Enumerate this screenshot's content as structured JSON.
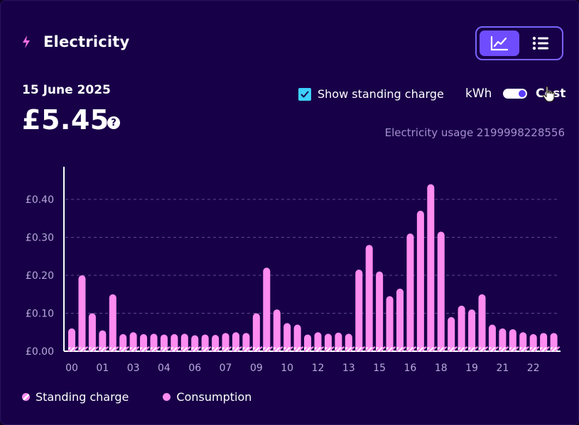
{
  "card": {
    "title": "Electricity",
    "icons": {
      "title_icon": "lightning-bolt-icon",
      "chart_view": "line-chart-icon",
      "list_view": "list-icon",
      "help": "question-mark-icon",
      "cursor": "hand-pointer-icon"
    }
  },
  "summary": {
    "date": "15 June 2025",
    "amount": "£5.45",
    "help_glyph": "?"
  },
  "controls": {
    "standing_charge_label": "Show standing charge",
    "standing_charge_checked": true,
    "unit_kwh": "kWh",
    "unit_cost": "Cost",
    "unit_selected": "Cost"
  },
  "meter": {
    "label": "Electricity usage 2199998228556"
  },
  "legend": {
    "standing_charge": "Standing charge",
    "consumption": "Consumption"
  },
  "colors": {
    "background": "#180048",
    "bar": "#ff8cf0",
    "accent": "#6f4dff",
    "checkbox": "#3ed0ff",
    "muted_text": "#a58fd0"
  },
  "chart_data": {
    "type": "bar",
    "x_ticks": [
      "00",
      "01",
      "03",
      "04",
      "06",
      "07",
      "09",
      "10",
      "12",
      "13",
      "15",
      "16",
      "18",
      "19",
      "21",
      "22"
    ],
    "y_ticks": [
      "£0.00",
      "£0.10",
      "£0.20",
      "£0.30",
      "£0.40"
    ],
    "ylim": [
      0,
      0.48
    ],
    "grid": true,
    "categories": [
      "00:00",
      "00:30",
      "01:00",
      "01:30",
      "02:00",
      "02:30",
      "03:00",
      "03:30",
      "04:00",
      "04:30",
      "05:00",
      "05:30",
      "06:00",
      "06:30",
      "07:00",
      "07:30",
      "08:00",
      "08:30",
      "09:00",
      "09:30",
      "10:00",
      "10:30",
      "11:00",
      "11:30",
      "12:00",
      "12:30",
      "13:00",
      "13:30",
      "14:00",
      "14:30",
      "15:00",
      "15:30",
      "16:00",
      "16:30",
      "17:00",
      "17:30",
      "18:00",
      "18:30",
      "19:00",
      "19:30",
      "20:00",
      "20:30",
      "21:00",
      "21:30",
      "22:00",
      "22:30",
      "23:00",
      "23:30"
    ],
    "series": [
      {
        "name": "Standing charge",
        "values": [
          0.01,
          0.01,
          0.01,
          0.01,
          0.01,
          0.01,
          0.01,
          0.01,
          0.01,
          0.01,
          0.01,
          0.01,
          0.01,
          0.01,
          0.01,
          0.01,
          0.01,
          0.01,
          0.01,
          0.01,
          0.01,
          0.01,
          0.01,
          0.01,
          0.01,
          0.01,
          0.01,
          0.01,
          0.01,
          0.01,
          0.01,
          0.01,
          0.01,
          0.01,
          0.01,
          0.01,
          0.01,
          0.01,
          0.01,
          0.01,
          0.01,
          0.01,
          0.01,
          0.01,
          0.01,
          0.01,
          0.01,
          0.01
        ]
      },
      {
        "name": "Consumption",
        "values": [
          0.06,
          0.2,
          0.1,
          0.055,
          0.15,
          0.045,
          0.05,
          0.045,
          0.046,
          0.044,
          0.045,
          0.046,
          0.042,
          0.044,
          0.043,
          0.048,
          0.05,
          0.048,
          0.1,
          0.22,
          0.11,
          0.074,
          0.07,
          0.044,
          0.05,
          0.046,
          0.049,
          0.046,
          0.215,
          0.28,
          0.21,
          0.145,
          0.165,
          0.31,
          0.37,
          0.44,
          0.315,
          0.09,
          0.12,
          0.11,
          0.15,
          0.07,
          0.06,
          0.058,
          0.05,
          0.045,
          0.048,
          0.048
        ]
      }
    ]
  }
}
